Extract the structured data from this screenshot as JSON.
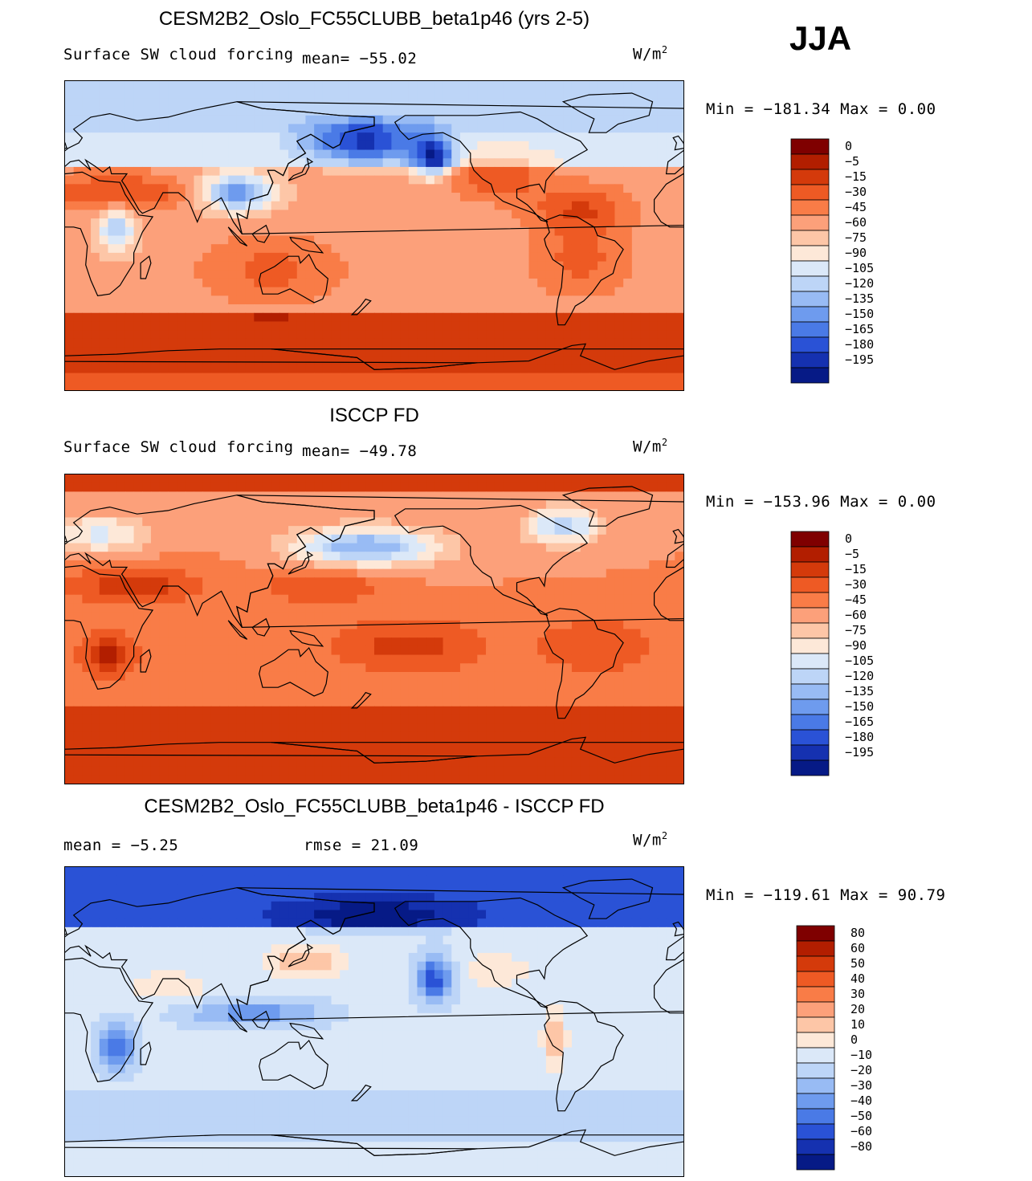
{
  "season": "JJA",
  "chart_data": [
    {
      "type": "heatmap",
      "title": "CESM2B2_Oslo_FC55CLUBB_beta1p46 (yrs 2-5)",
      "variable": "Surface SW cloud forcing",
      "mean_text": "mean= −55.02",
      "units_base": "W/m",
      "units_exp": "2",
      "min_max_text": "Min = −181.34 Max =    0.00",
      "min": -181.34,
      "max": 0.0,
      "colorbar_labels": [
        "0",
        "−5",
        "−15",
        "−30",
        "−45",
        "−60",
        "−75",
        "−90",
        "−105",
        "−120",
        "−135",
        "−150",
        "−165",
        "−180",
        "−195"
      ]
    },
    {
      "type": "heatmap",
      "title": "ISCCP FD",
      "variable": "Surface SW cloud forcing",
      "mean_text": "mean= −49.78",
      "units_base": "W/m",
      "units_exp": "2",
      "min_max_text": "Min = −153.96 Max =    0.00",
      "min": -153.96,
      "max": 0.0,
      "colorbar_labels": [
        "0",
        "−5",
        "−15",
        "−30",
        "−45",
        "−60",
        "−75",
        "−90",
        "−105",
        "−120",
        "−135",
        "−150",
        "−165",
        "−180",
        "−195"
      ]
    },
    {
      "type": "heatmap",
      "title": "CESM2B2_Oslo_FC55CLUBB_beta1p46 - ISCCP FD",
      "mean_text": "mean =   −5.25",
      "rmse_text": "rmse =   21.09",
      "units_base": "W/m",
      "units_exp": "2",
      "min_max_text": "Min = −119.61 Max =   90.79",
      "min": -119.61,
      "max": 90.79,
      "colorbar_labels": [
        "80",
        "60",
        "50",
        "40",
        "30",
        "20",
        "10",
        "0",
        "−10",
        "−20",
        "−30",
        "−40",
        "−50",
        "−60",
        "−80"
      ]
    }
  ],
  "colors": {
    "field_palette": [
      "#7f0000",
      "#b21e00",
      "#d43a0b",
      "#ee5a24",
      "#f97c47",
      "#fca07a",
      "#fdc6a7",
      "#fde8d8",
      "#dbe8f8",
      "#bdd5f7",
      "#98bbf4",
      "#6e9bee",
      "#4a7ae6",
      "#2a52d6",
      "#1531b0",
      "#061a86"
    ],
    "diff_palette": [
      "#7f0000",
      "#b21e00",
      "#d43a0b",
      "#ee5a24",
      "#f97c47",
      "#fca07a",
      "#fdc6a7",
      "#fde8d8",
      "#dbe8f8",
      "#bdd5f7",
      "#98bbf4",
      "#6e9bee",
      "#4a7ae6",
      "#2a52d6",
      "#1531b0",
      "#061a86"
    ]
  }
}
